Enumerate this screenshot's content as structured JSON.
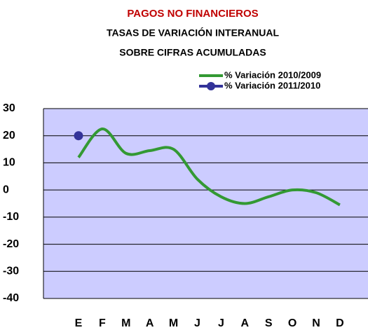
{
  "chart_data": {
    "type": "line",
    "title": "PAGOS NO FINANCIEROS",
    "subtitle": [
      "TASAS DE VARIACIÓN INTERANUAL",
      "SOBRE CIFRAS ACUMULADAS"
    ],
    "categories": [
      "E",
      "F",
      "M",
      "A",
      "M",
      "J",
      "J",
      "A",
      "S",
      "O",
      "N",
      "D"
    ],
    "series": [
      {
        "name": "% Variación 2010/2009",
        "color": "#339933",
        "values": [
          12,
          22.5,
          13.5,
          14.5,
          15,
          4,
          -2.5,
          -5,
          -2.5,
          0,
          -1,
          -5.5
        ]
      },
      {
        "name": "% Variación 2011/2010",
        "color": "#333399",
        "values": [
          20,
          null,
          null,
          null,
          null,
          null,
          null,
          null,
          null,
          null,
          null,
          null
        ]
      }
    ],
    "ylim": [
      -40,
      30
    ],
    "yticks": [
      -40,
      -30,
      -20,
      -10,
      0,
      10,
      20,
      30
    ],
    "grid": true,
    "legend": "top-right"
  }
}
